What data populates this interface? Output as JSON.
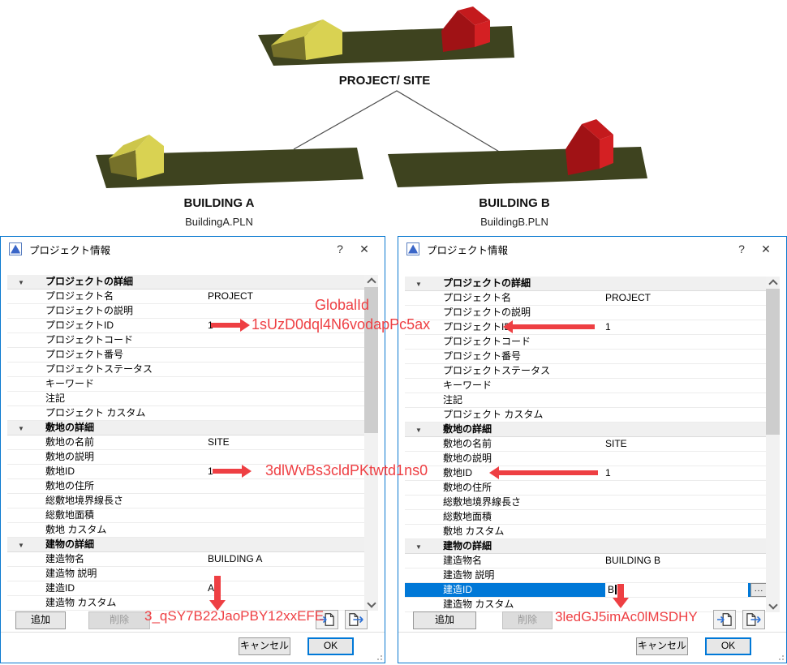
{
  "diagram": {
    "site_label": "PROJECT/ SITE",
    "buildings": [
      {
        "label": "BUILDING A",
        "file": "BuildingA.PLN"
      },
      {
        "label": "BUILDING B",
        "file": "BuildingB.PLN"
      }
    ],
    "colors": {
      "ground": "#3e431f",
      "yellow_roof": "#cdc64a",
      "yellow_front": "#d9d252",
      "yellow_side": "#76712a",
      "red_roof": "#c41a1d",
      "red_front": "#a01215",
      "red_side": "#d42023"
    }
  },
  "annotations": {
    "color": "#ee3f43",
    "global_id_label": "GlobalId",
    "project_guid": "1sUzD0dql4N6vodapPc5ax",
    "site_guid": "3dlWvBs3cldPKtwtd1ns0",
    "building_a_guid": "3_qSY7B22JaoPBY12xxEFE",
    "building_b_guid": "3ledGJ5imAc0lMSDHY"
  },
  "dialogs": [
    {
      "title": "プロジェクト情報",
      "help_label": "?",
      "close_label": "✕",
      "rows": [
        {
          "type": "header",
          "label": "プロジェクトの詳細"
        },
        {
          "type": "item",
          "label": "プロジェクト名",
          "value": "PROJECT"
        },
        {
          "type": "item",
          "label": "プロジェクトの説明",
          "value": ""
        },
        {
          "type": "item",
          "label": "プロジェクトID",
          "value": "1"
        },
        {
          "type": "item",
          "label": "プロジェクトコード",
          "value": ""
        },
        {
          "type": "item",
          "label": "プロジェクト番号",
          "value": ""
        },
        {
          "type": "item",
          "label": "プロジェクトステータス",
          "value": ""
        },
        {
          "type": "item",
          "label": "キーワード",
          "value": ""
        },
        {
          "type": "item",
          "label": "注記",
          "value": ""
        },
        {
          "type": "item",
          "label": "プロジェクト カスタム",
          "value": ""
        },
        {
          "type": "header",
          "label": "敷地の詳細"
        },
        {
          "type": "item",
          "label": "敷地の名前",
          "value": "SITE"
        },
        {
          "type": "item",
          "label": "敷地の説明",
          "value": ""
        },
        {
          "type": "item",
          "label": "敷地ID",
          "value": "1"
        },
        {
          "type": "item",
          "label": "敷地の住所",
          "value": ""
        },
        {
          "type": "item",
          "label": "総敷地境界線長さ",
          "value": ""
        },
        {
          "type": "item",
          "label": "総敷地面積",
          "value": ""
        },
        {
          "type": "item",
          "label": "敷地 カスタム",
          "value": ""
        },
        {
          "type": "header",
          "label": "建物の詳細"
        },
        {
          "type": "item",
          "label": "建造物名",
          "value": "BUILDING A"
        },
        {
          "type": "item",
          "label": "建造物 説明",
          "value": ""
        },
        {
          "type": "item",
          "label": "建造ID",
          "value": "A"
        },
        {
          "type": "item",
          "label": "建造物 カスタム",
          "value": ""
        }
      ],
      "buttons": {
        "add": "追加",
        "delete": "削除",
        "cancel": "キャンセル",
        "ok": "OK"
      }
    },
    {
      "title": "プロジェクト情報",
      "help_label": "?",
      "close_label": "✕",
      "rows": [
        {
          "type": "header",
          "label": "プロジェクトの詳細"
        },
        {
          "type": "item",
          "label": "プロジェクト名",
          "value": "PROJECT"
        },
        {
          "type": "item",
          "label": "プロジェクトの説明",
          "value": ""
        },
        {
          "type": "item",
          "label": "プロジェクトID",
          "value": "1"
        },
        {
          "type": "item",
          "label": "プロジェクトコード",
          "value": ""
        },
        {
          "type": "item",
          "label": "プロジェクト番号",
          "value": ""
        },
        {
          "type": "item",
          "label": "プロジェクトステータス",
          "value": ""
        },
        {
          "type": "item",
          "label": "キーワード",
          "value": ""
        },
        {
          "type": "item",
          "label": "注記",
          "value": ""
        },
        {
          "type": "item",
          "label": "プロジェクト カスタム",
          "value": ""
        },
        {
          "type": "header",
          "label": "敷地の詳細"
        },
        {
          "type": "item",
          "label": "敷地の名前",
          "value": "SITE"
        },
        {
          "type": "item",
          "label": "敷地の説明",
          "value": ""
        },
        {
          "type": "item",
          "label": "敷地ID",
          "value": "1"
        },
        {
          "type": "item",
          "label": "敷地の住所",
          "value": ""
        },
        {
          "type": "item",
          "label": "総敷地境界線長さ",
          "value": ""
        },
        {
          "type": "item",
          "label": "総敷地面積",
          "value": ""
        },
        {
          "type": "item",
          "label": "敷地 カスタム",
          "value": ""
        },
        {
          "type": "header",
          "label": "建物の詳細"
        },
        {
          "type": "item",
          "label": "建造物名",
          "value": "BUILDING B"
        },
        {
          "type": "item",
          "label": "建造物 説明",
          "value": ""
        },
        {
          "type": "item",
          "label": "建造ID",
          "value": "B",
          "selected": true,
          "editing": true,
          "more_label": "..."
        },
        {
          "type": "item",
          "label": "建造物 カスタム",
          "value": ""
        }
      ],
      "buttons": {
        "add": "追加",
        "delete": "削除",
        "cancel": "キャンセル",
        "ok": "OK"
      }
    }
  ]
}
